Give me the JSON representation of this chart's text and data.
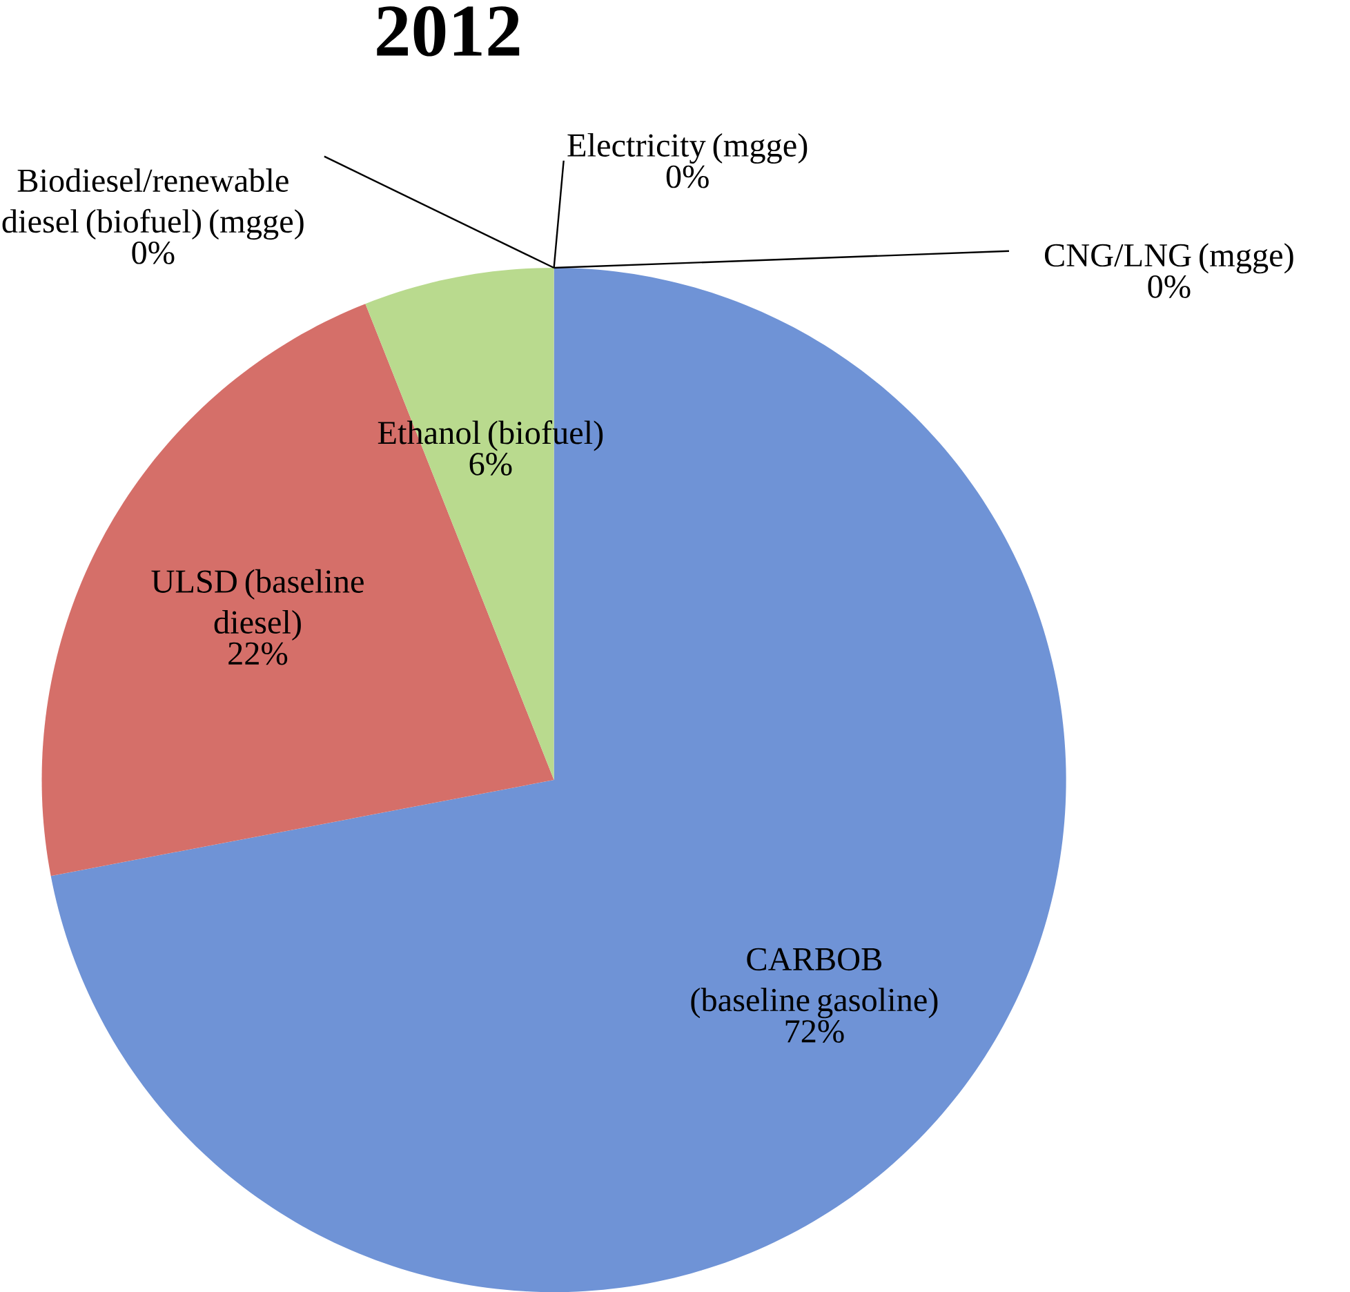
{
  "chart_data": {
    "type": "pie",
    "title": "2012",
    "categories": [
      "CARBOB (baseline gasoline)",
      "ULSD (baseline diesel)",
      "Ethanol (biofuel)",
      "Biodiesel/renewable diesel (biofuel) (mgge)",
      "Electricity (mgge)",
      "CNG/LNG (mgge)"
    ],
    "values": [
      72,
      22,
      6,
      0,
      0,
      0
    ],
    "colors": [
      "#6f93d6",
      "#d56f69",
      "#b9da8e",
      "#8064a2",
      "#4bacc6",
      "#f79646"
    ],
    "value_labels": [
      "72%",
      "22%",
      "6%",
      "0%",
      "0%",
      "0%"
    ]
  }
}
